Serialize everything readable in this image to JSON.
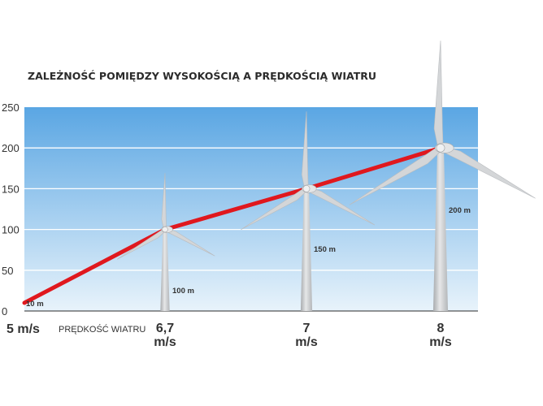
{
  "chart_data": {
    "type": "line",
    "title": "ZALEŻNOŚĆ POMIĘDZY WYSOKOŚCIĄ A PRĘDKOŚCIĄ WIATRU",
    "xlabel": "PRĘDKOŚĆ WIATRU",
    "ylabel": "",
    "ylim": [
      0,
      250
    ],
    "yticks": [
      "0",
      "50",
      "100",
      "150",
      "200",
      "250"
    ],
    "grid": true,
    "x_categories": [
      {
        "line1": "5 m/s",
        "line2": ""
      },
      {
        "line1": "6,7",
        "line2": "m/s"
      },
      {
        "line1": "7",
        "line2": "m/s"
      },
      {
        "line1": "8",
        "line2": "m/s"
      }
    ],
    "series": [
      {
        "color": "#e0181e",
        "points": [
          {
            "x": 5,
            "y": 10
          },
          {
            "x": 6.7,
            "y": 100
          },
          {
            "x": 7,
            "y": 150
          },
          {
            "x": 8,
            "y": 200
          }
        ]
      }
    ],
    "height_labels": [
      {
        "text": "10 m",
        "x": 5,
        "y": 10
      },
      {
        "text": "100 m",
        "x": 6.7,
        "y": 100
      },
      {
        "text": "150 m",
        "x": 7,
        "y": 150
      },
      {
        "text": "200 m",
        "x": 8,
        "y": 200
      }
    ],
    "colors": {
      "sky_top": "#5aa6e3",
      "sky_bottom": "#e8f3fb",
      "line": "#e0181e",
      "turbine": "#d4d6d8"
    }
  }
}
